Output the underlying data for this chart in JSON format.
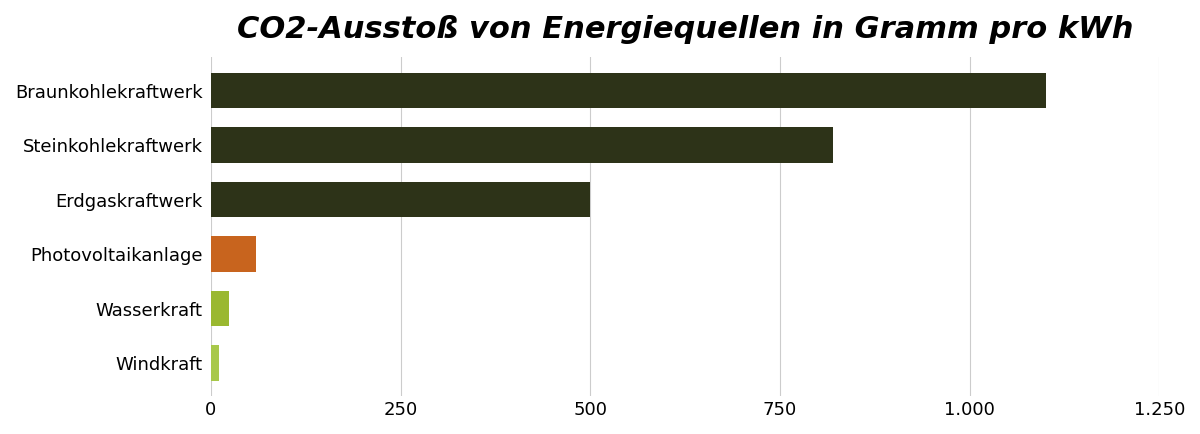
{
  "categories": [
    "Windkraft",
    "Wasserkraft",
    "Photovoltaikanlage",
    "Erdgaskraftwerk",
    "Steinkohlekraftwerk",
    "Braunkohlekraftwerk"
  ],
  "values": [
    11,
    24,
    60,
    500,
    820,
    1100
  ],
  "bar_colors": [
    "#a8c84a",
    "#9ab830",
    "#c8641e",
    "#2d3318",
    "#2d3318",
    "#2d3318"
  ],
  "title": "CO2-Ausstoß von Energiequellen in Gramm pro kWh",
  "xlim": [
    0,
    1250
  ],
  "xticks": [
    0,
    250,
    500,
    750,
    1000,
    1250
  ],
  "xtick_labels": [
    "0",
    "250",
    "500",
    "750",
    "1.000",
    "1.250"
  ],
  "background_color": "#ffffff",
  "bar_height": 0.65,
  "title_fontsize": 22,
  "tick_fontsize": 13,
  "label_fontsize": 13
}
